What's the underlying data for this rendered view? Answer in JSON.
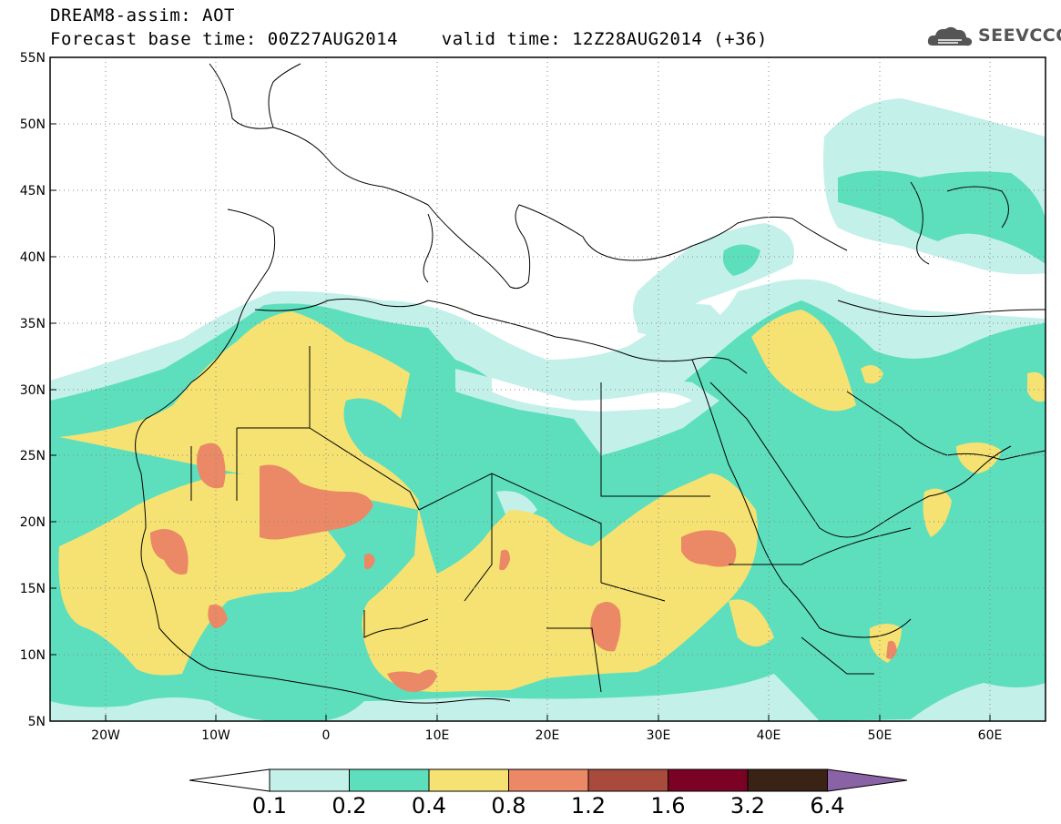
{
  "title": {
    "line1": "DREAM8-assim: AOT",
    "line2": "Forecast base time: 00Z27AUG2014    valid time: 12Z28AUG2014 (+36)"
  },
  "logo": {
    "text": "SEEVCCC",
    "icon": "cloud-icon"
  },
  "map": {
    "lat_range": [
      5,
      55
    ],
    "lon_range": [
      -25,
      65
    ],
    "lat_ticks": [
      "5N",
      "10N",
      "15N",
      "20N",
      "25N",
      "30N",
      "35N",
      "40N",
      "45N",
      "50N",
      "55N"
    ],
    "lon_ticks": [
      "20W",
      "10W",
      "0",
      "10E",
      "20E",
      "30E",
      "40E",
      "50E",
      "60E"
    ],
    "grid": true
  },
  "colorbar": {
    "labels": [
      "0.1",
      "0.2",
      "0.4",
      "0.8",
      "1.2",
      "1.6",
      "3.2",
      "6.4"
    ],
    "colors": [
      "#ffffff",
      "#c4f0ea",
      "#5ddfbd",
      "#f6e272",
      "#eb8866",
      "#a84b3c",
      "#7a0224",
      "#3a2214",
      "#8a62a6"
    ]
  },
  "aot_colors": {
    "light": "#c4f0ea",
    "green": "#5ddfbd",
    "yellow": "#f6e272",
    "orange": "#eb8866",
    "brown": "#a84b3c",
    "maroon": "#7a0224",
    "dark": "#3a2214"
  }
}
